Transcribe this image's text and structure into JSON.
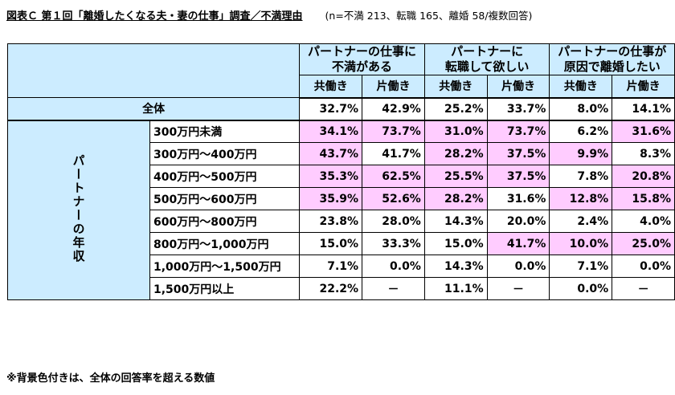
{
  "title": "図表Ｃ 第１回「離婚したくなる夫・妻の仕事」調査／不満理由",
  "note": "(n=不満 213、転職 165、離婚 58/複数回答)",
  "table": {
    "groups": [
      "パートナーの仕事に\n不満がある",
      "パートナーに\n転職して欲しい",
      "パートナーの仕事が\n原因で離婚したい"
    ],
    "subheaders": [
      "共働き",
      "片働き",
      "共働き",
      "片働き",
      "共働き",
      "片働き"
    ],
    "total": {
      "label": "全体",
      "values": [
        "32.7%",
        "42.9%",
        "25.2%",
        "33.7%",
        "8.0%",
        "14.1%"
      ]
    },
    "income_label": "パートナーの年収",
    "rows": [
      {
        "label": "300万円未満",
        "values": [
          "34.1%",
          "73.7%",
          "31.0%",
          "73.7%",
          "6.2%",
          "31.6%"
        ],
        "highlight": [
          true,
          true,
          true,
          true,
          false,
          true
        ]
      },
      {
        "label": "300万円～400万円",
        "values": [
          "43.7%",
          "41.7%",
          "28.2%",
          "37.5%",
          "9.9%",
          "8.3%"
        ],
        "highlight": [
          true,
          false,
          true,
          true,
          true,
          false
        ]
      },
      {
        "label": "400万円～500万円",
        "values": [
          "35.3%",
          "62.5%",
          "25.5%",
          "37.5%",
          "7.8%",
          "20.8%"
        ],
        "highlight": [
          true,
          true,
          true,
          true,
          false,
          true
        ]
      },
      {
        "label": "500万円～600万円",
        "values": [
          "35.9%",
          "52.6%",
          "28.2%",
          "31.6%",
          "12.8%",
          "15.8%"
        ],
        "highlight": [
          true,
          true,
          true,
          false,
          true,
          true
        ]
      },
      {
        "label": "600万円～800万円",
        "values": [
          "23.8%",
          "28.0%",
          "14.3%",
          "20.0%",
          "2.4%",
          "4.0%"
        ],
        "highlight": [
          false,
          false,
          false,
          false,
          false,
          false
        ]
      },
      {
        "label": "800万円～1,000万円",
        "values": [
          "15.0%",
          "33.3%",
          "15.0%",
          "41.7%",
          "10.0%",
          "25.0%"
        ],
        "highlight": [
          false,
          false,
          false,
          true,
          true,
          true
        ]
      },
      {
        "label": "1,000万円～1,500万円",
        "values": [
          "7.1%",
          "0.0%",
          "14.3%",
          "0.0%",
          "7.1%",
          "0.0%"
        ],
        "highlight": [
          false,
          false,
          false,
          false,
          false,
          false
        ]
      },
      {
        "label": "1,500万円以上",
        "values": [
          "22.2%",
          "－",
          "11.1%",
          "－",
          "0.0%",
          "－"
        ],
        "highlight": [
          false,
          false,
          false,
          false,
          false,
          false
        ]
      }
    ]
  },
  "footnote": "※背景色付きは、全体の回答率を超える数値",
  "colors": {
    "header_bg": "#ccecff",
    "highlight_bg": "#ffccff"
  }
}
